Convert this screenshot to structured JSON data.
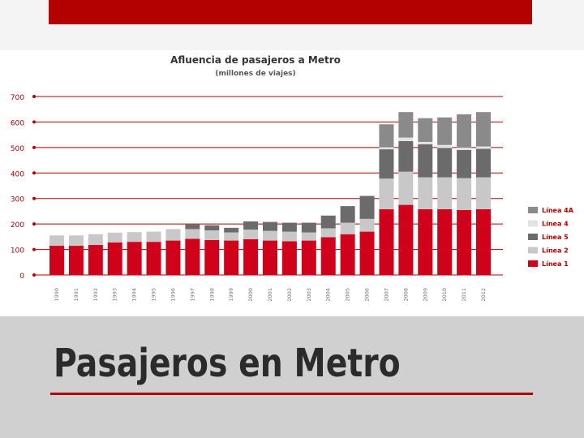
{
  "slide": {
    "title": "Pasajeros en Metro",
    "accent_color": "#b30000"
  },
  "chart_data": {
    "type": "bar",
    "stacked": true,
    "title": "Afluencia de pasajeros a Metro",
    "subtitle": "(millones de viajes)",
    "ylim": [
      0,
      700
    ],
    "yticks": [
      "0",
      "100",
      "200",
      "300",
      "400",
      "500",
      "600",
      "700"
    ],
    "grid": true,
    "legend_position": "right",
    "categories": [
      "1990",
      "1991",
      "1992",
      "1993",
      "1994",
      "1995",
      "1996",
      "1997",
      "1998",
      "1999",
      "2000",
      "2001",
      "2002",
      "2003",
      "2004",
      "2005",
      "2006",
      "2007",
      "2008",
      "2009",
      "2010",
      "2011",
      "2012"
    ],
    "series": [
      {
        "name": "Línea 1",
        "color": "#d0021b",
        "values": [
          115,
          115,
          118,
          128,
          130,
          130,
          135,
          142,
          137,
          135,
          140,
          135,
          132,
          135,
          148,
          160,
          170,
          258,
          275,
          258,
          258,
          255,
          258
        ]
      },
      {
        "name": "Línea 2",
        "color": "#c8c8c8",
        "values": [
          40,
          40,
          42,
          38,
          38,
          40,
          45,
          38,
          38,
          32,
          38,
          38,
          38,
          32,
          35,
          45,
          50,
          120,
          130,
          125,
          125,
          125,
          125
        ]
      },
      {
        "name": "Línea 5",
        "color": "#6b6b6b",
        "values": [
          0,
          0,
          0,
          0,
          0,
          0,
          0,
          18,
          20,
          18,
          32,
          35,
          35,
          38,
          50,
          65,
          90,
          115,
          120,
          130,
          115,
          110,
          112
        ]
      },
      {
        "name": "Línea 4",
        "color": "#e3e3e3",
        "values": [
          0,
          0,
          0,
          0,
          0,
          0,
          0,
          0,
          0,
          0,
          0,
          0,
          0,
          0,
          0,
          0,
          0,
          8,
          14,
          9,
          12,
          10,
          9
        ]
      },
      {
        "name": "Línea 4A",
        "color": "#8a8a8a",
        "values": [
          0,
          0,
          0,
          0,
          0,
          0,
          0,
          0,
          0,
          0,
          0,
          0,
          0,
          0,
          0,
          0,
          0,
          90,
          100,
          93,
          108,
          130,
          135
        ]
      }
    ],
    "legend_order": [
      "Línea 4A",
      "Línea 4",
      "Línea 5",
      "Línea 2",
      "Línea 1"
    ]
  }
}
